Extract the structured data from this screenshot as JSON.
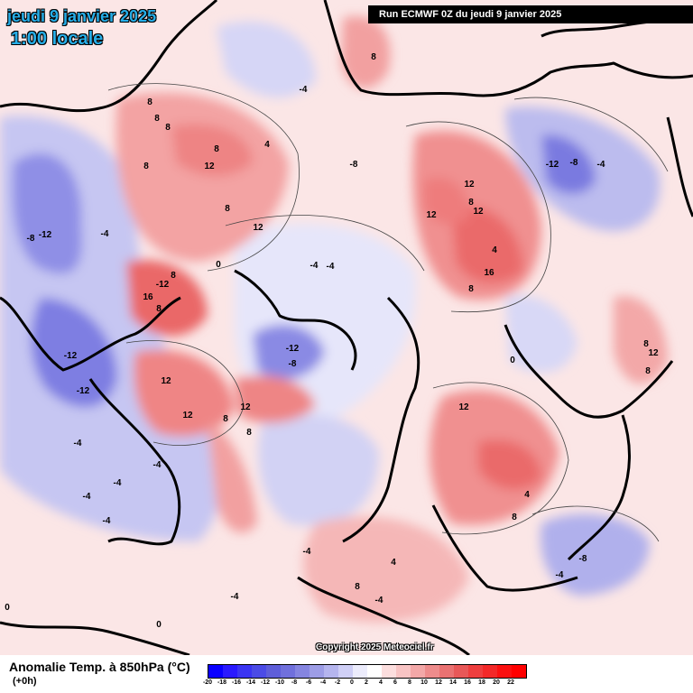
{
  "header": {
    "date": "jeudi 9 janvier 2025",
    "time": "1:00 locale",
    "run": "Run ECMWF 0Z du jeudi 9 janvier 2025"
  },
  "footer": {
    "variable": "Anomalie Temp. à 850hPa (°C)",
    "lead": "(+0h)",
    "copyright": "Copyright 2025 Meteociel.fr"
  },
  "colorbar": {
    "ticks": [
      "-20",
      "-18",
      "-16",
      "-14",
      "-12",
      "-10",
      "-8",
      "-6",
      "-4",
      "-2",
      "0",
      "2",
      "4",
      "6",
      "8",
      "10",
      "12",
      "14",
      "16",
      "18",
      "20",
      "22"
    ],
    "colors": [
      "#0a00ff",
      "#2a1aff",
      "#3b35f2",
      "#4b4be6",
      "#5e5ed9",
      "#7070dc",
      "#8585e0",
      "#9d9de6",
      "#b5b5ee",
      "#cfcff6",
      "#ececfc",
      "#ffffff",
      "#fcdede",
      "#f8c4c4",
      "#f3a8a8",
      "#ee8c8c",
      "#ea7272",
      "#e85858",
      "#ee3e3e",
      "#f32828",
      "#fb1010",
      "#ff0000"
    ]
  },
  "map_labels": [
    {
      "text": "8"
    },
    {
      "text": "8"
    },
    {
      "text": "8"
    },
    {
      "text": "8"
    },
    {
      "text": "12"
    },
    {
      "text": "8"
    },
    {
      "text": "4"
    },
    {
      "text": "8"
    },
    {
      "text": "12"
    },
    {
      "text": "-4"
    },
    {
      "text": "-12"
    },
    {
      "text": "-8"
    },
    {
      "text": "-4"
    },
    {
      "text": "8"
    },
    {
      "text": "16"
    },
    {
      "text": "-12"
    },
    {
      "text": "8"
    },
    {
      "text": "0"
    },
    {
      "text": "-4"
    },
    {
      "text": "-4"
    },
    {
      "text": "-8"
    },
    {
      "text": "-12"
    },
    {
      "text": "-8"
    },
    {
      "text": "-12"
    },
    {
      "text": "12"
    },
    {
      "text": "12"
    },
    {
      "text": "8"
    },
    {
      "text": "12"
    },
    {
      "text": "8"
    },
    {
      "text": "-12"
    },
    {
      "text": "-4"
    },
    {
      "text": "-4"
    },
    {
      "text": "-4"
    },
    {
      "text": "-4"
    },
    {
      "text": "-4"
    },
    {
      "text": "12"
    },
    {
      "text": "8"
    },
    {
      "text": "12"
    },
    {
      "text": "12"
    },
    {
      "text": "16"
    },
    {
      "text": "8"
    },
    {
      "text": "4"
    },
    {
      "text": "-12"
    },
    {
      "text": "-8"
    },
    {
      "text": "-4"
    },
    {
      "text": "0"
    },
    {
      "text": "8"
    },
    {
      "text": "12"
    },
    {
      "text": "8"
    },
    {
      "text": "12"
    },
    {
      "text": "8"
    },
    {
      "text": "8"
    },
    {
      "text": "4"
    },
    {
      "text": "8"
    },
    {
      "text": "-8"
    },
    {
      "text": "-4"
    },
    {
      "text": "4"
    },
    {
      "text": "-4"
    },
    {
      "text": "0"
    },
    {
      "text": "-4"
    },
    {
      "text": "0"
    },
    {
      "text": "-4"
    }
  ]
}
